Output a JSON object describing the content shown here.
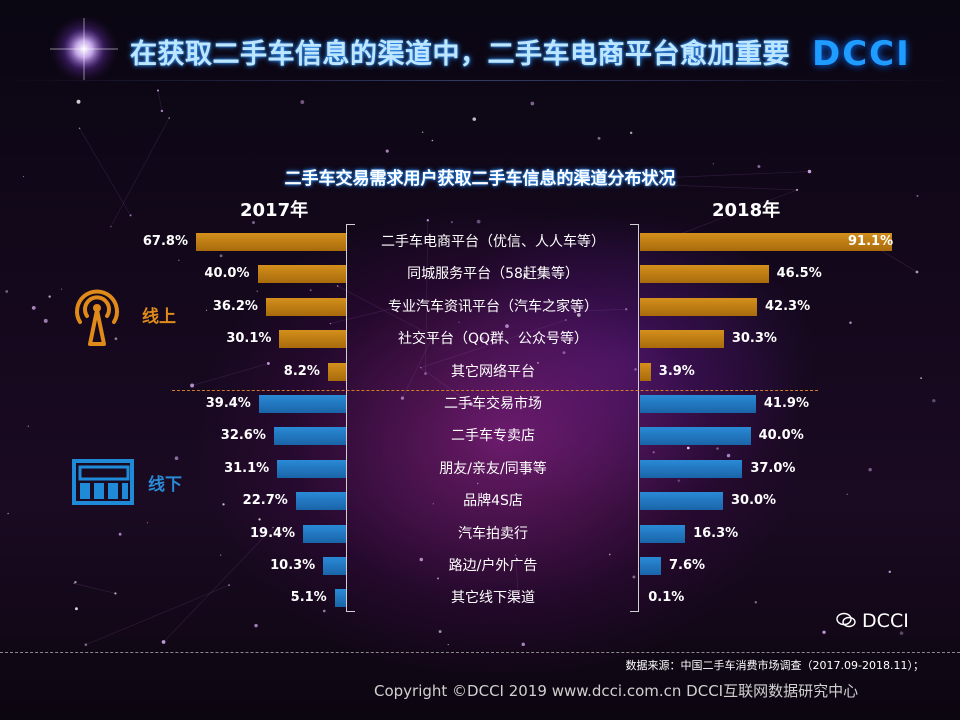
{
  "header": {
    "title": "在获取二手车信息的渠道中，二手车电商平台愈加重要",
    "logo": "DCCI"
  },
  "colors": {
    "online": "#c9861a",
    "offline": "#1f78c1",
    "title_glow": "#2a8cff"
  },
  "legend": {
    "online": "线上",
    "offline": "线下"
  },
  "icons": {
    "online": "broadcast-tower-icon",
    "offline": "storefront-icon",
    "wechat": "wechat-icon"
  },
  "chart_data": {
    "type": "bar",
    "title": "二手车交易需求用户获取二手车信息的渠道分布状况",
    "orientation": "horizontal-butterfly",
    "xlim": [
      0,
      100
    ],
    "categories": [
      "二手车电商平台（优信、人人车等）",
      "同城服务平台（58赶集等）",
      "专业汽车资讯平台（汽车之家等）",
      "社交平台（QQ群、公众号等）",
      "其它网络平台",
      "二手车交易市场",
      "二手车专卖店",
      "朋友/亲友/同事等",
      "品牌4S店",
      "汽车拍卖行",
      "路边/户外广告",
      "其它线下渠道"
    ],
    "group": [
      "online",
      "online",
      "online",
      "online",
      "online",
      "offline",
      "offline",
      "offline",
      "offline",
      "offline",
      "offline",
      "offline"
    ],
    "series": [
      {
        "name": "2017年",
        "values": [
          67.8,
          40.0,
          36.2,
          30.1,
          8.2,
          39.4,
          32.6,
          31.1,
          22.7,
          19.4,
          10.3,
          5.1
        ],
        "labels": [
          "67.8%",
          "40.0%",
          "36.2%",
          "30.1%",
          "8.2%",
          "39.4%",
          "32.6%",
          "31.1%",
          "22.7%",
          "19.4%",
          "10.3%",
          "5.1%"
        ]
      },
      {
        "name": "2018年",
        "values": [
          91.1,
          46.5,
          42.3,
          30.3,
          3.9,
          41.9,
          40.0,
          37.0,
          30.0,
          16.3,
          7.6,
          0.1
        ],
        "labels": [
          "91.1%",
          "46.5%",
          "42.3%",
          "30.3%",
          "3.9%",
          "41.9%",
          "40.0%",
          "37.0%",
          "30.0%",
          "16.3%",
          "7.6%",
          "0.1%"
        ]
      }
    ]
  },
  "footer": {
    "source": "数据来源：中国二手车消费市场调查（2017.09-2018.11）；",
    "copyright": "Copyright ©DCCI 2019  www.dcci.com.cn   DCCI互联网数据研究中心",
    "wechat_label": "DCCI"
  }
}
